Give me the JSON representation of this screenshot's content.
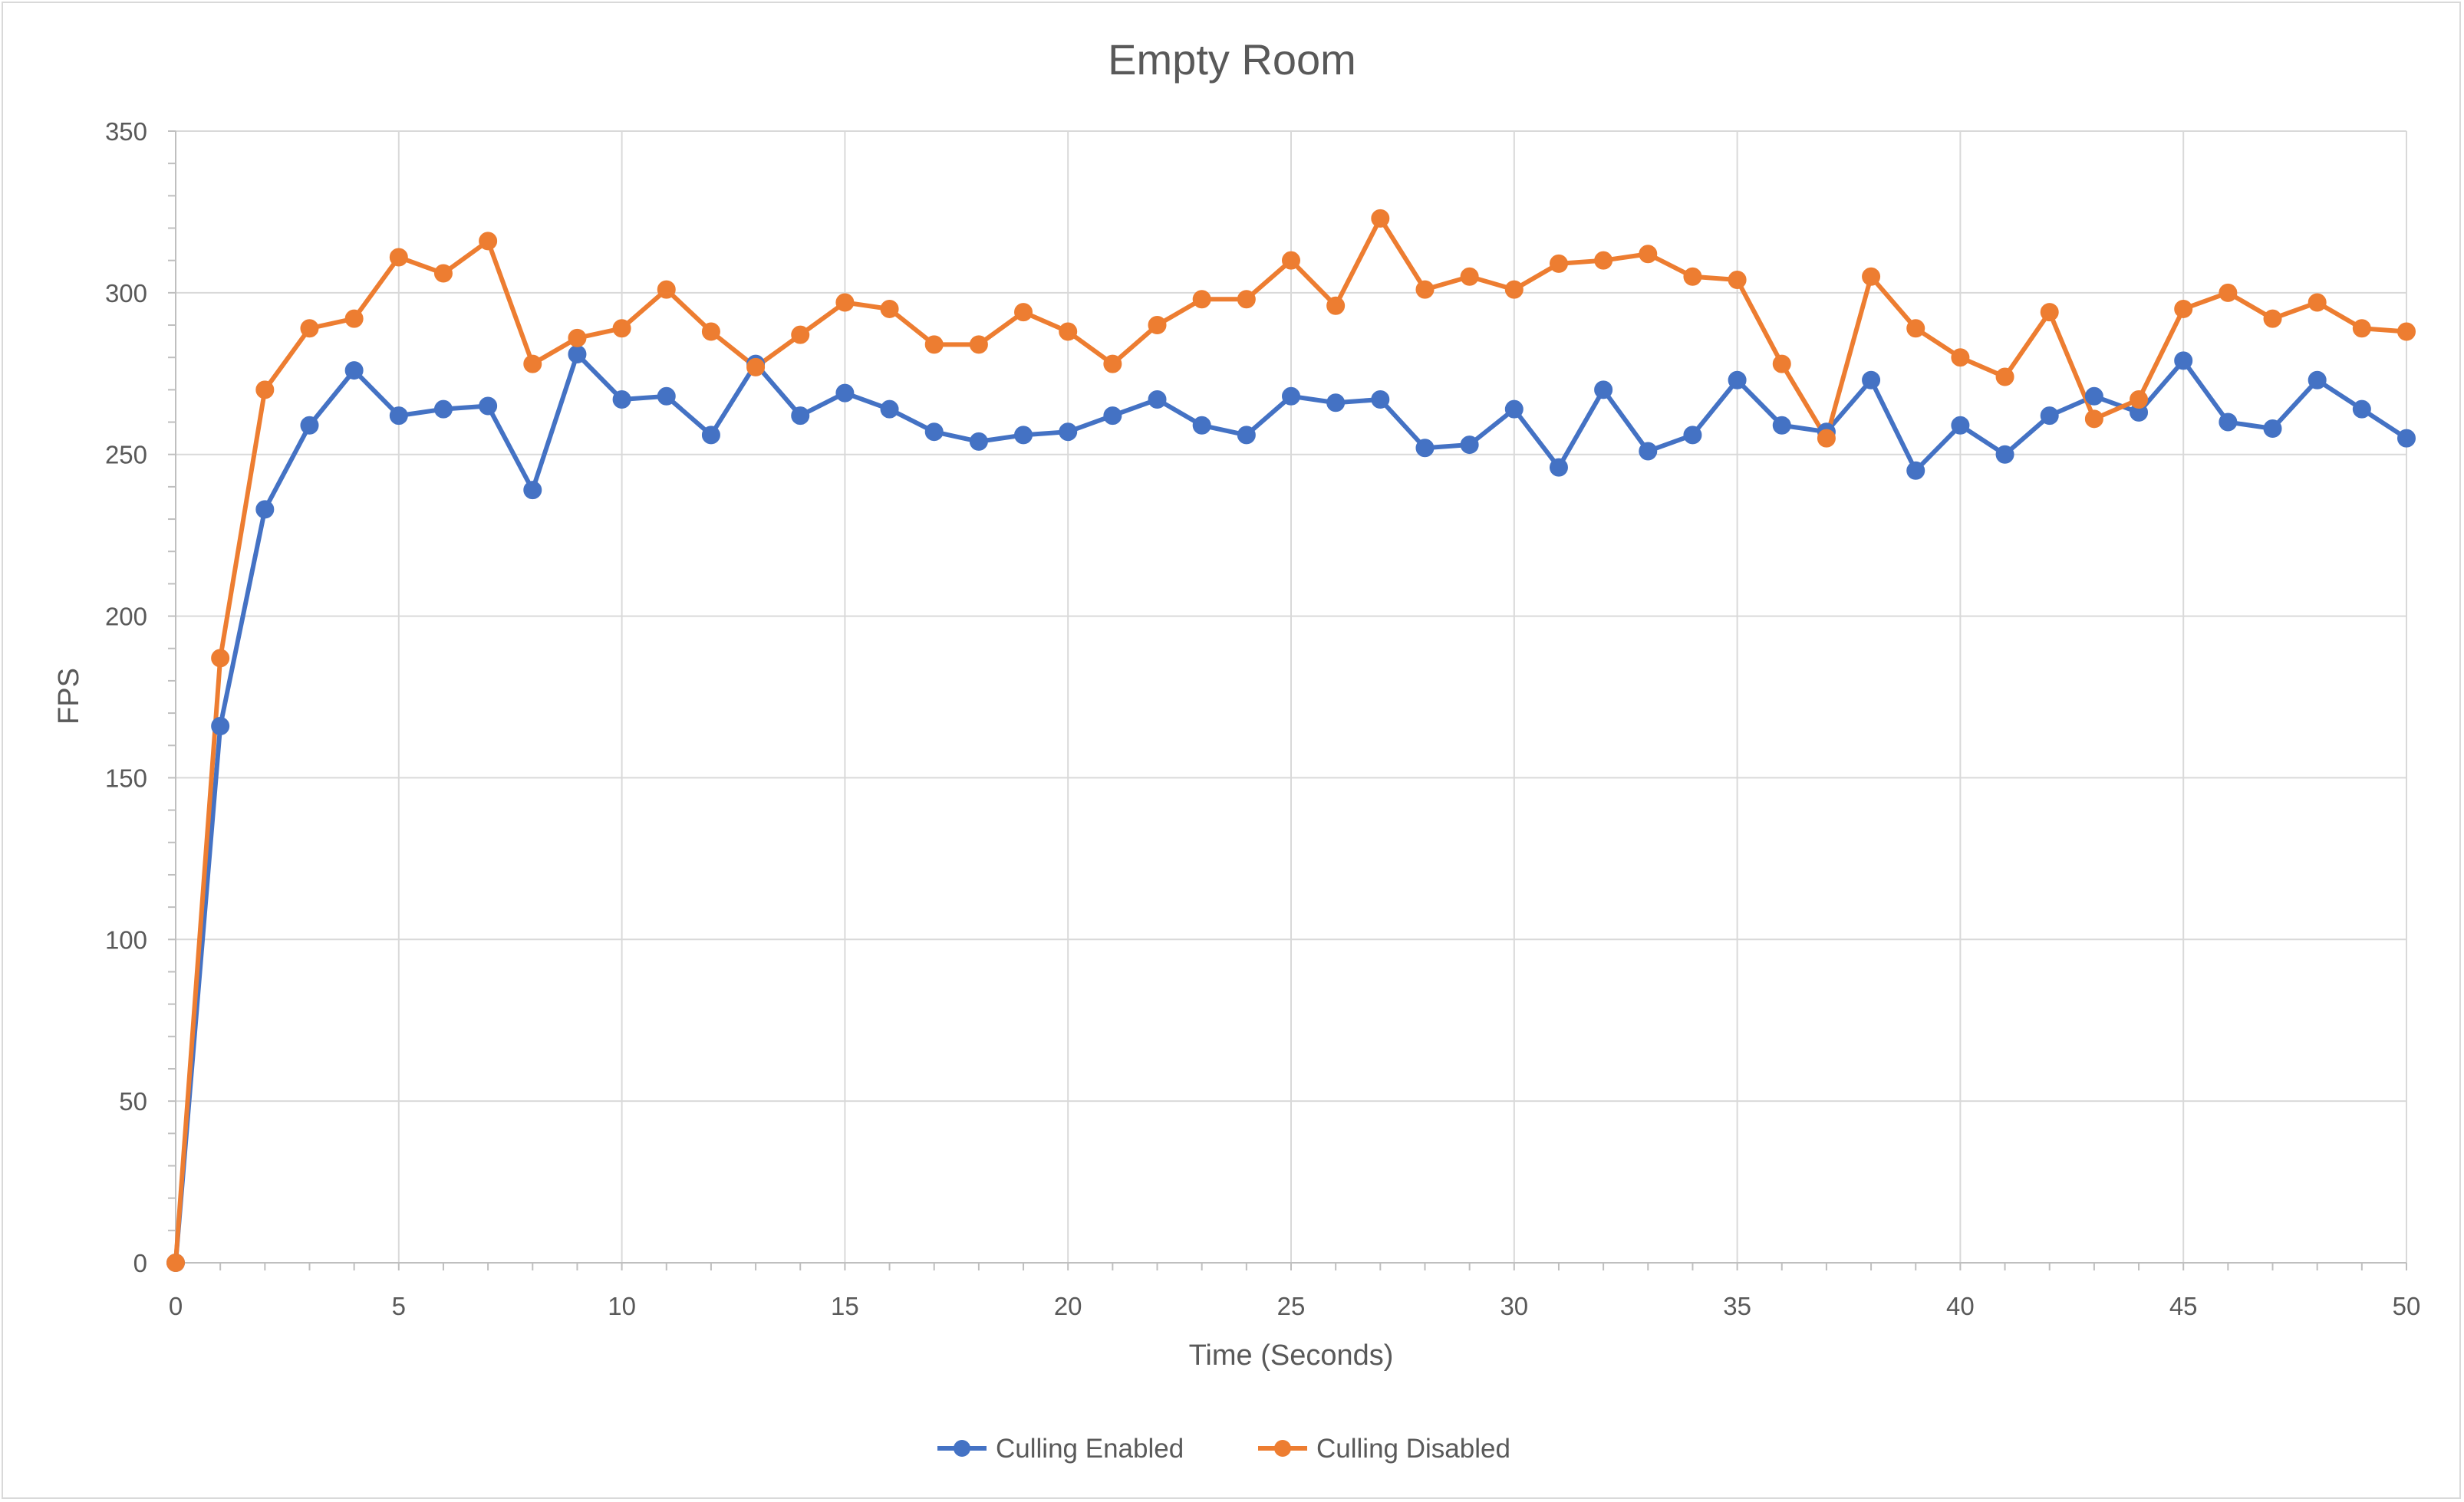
{
  "chart_data": {
    "type": "line",
    "title": "Empty Room",
    "xlabel": "Time (Seconds)",
    "ylabel": "FPS",
    "xlim": [
      0,
      50
    ],
    "ylim": [
      0,
      350
    ],
    "x_ticks": [
      0,
      5,
      10,
      15,
      20,
      25,
      30,
      35,
      40,
      45,
      50
    ],
    "y_ticks": [
      0,
      50,
      100,
      150,
      200,
      250,
      300,
      350
    ],
    "grid": true,
    "legend_position": "bottom",
    "x": [
      0,
      1,
      2,
      3,
      4,
      5,
      6,
      7,
      8,
      9,
      10,
      11,
      12,
      13,
      14,
      15,
      16,
      17,
      18,
      19,
      20,
      21,
      22,
      23,
      24,
      25,
      26,
      27,
      28,
      29,
      30,
      31,
      32,
      33,
      34,
      35,
      36,
      37,
      38,
      39,
      40,
      41,
      42,
      43,
      44,
      45,
      46,
      47,
      48,
      49,
      50
    ],
    "series": [
      {
        "name": "Culling Enabled",
        "color": "#4472c4",
        "values": [
          0,
          166,
          233,
          259,
          276,
          262,
          264,
          265,
          239,
          281,
          267,
          268,
          256,
          278,
          262,
          269,
          264,
          257,
          254,
          256,
          257,
          262,
          267,
          259,
          256,
          268,
          266,
          267,
          252,
          253,
          264,
          246,
          270,
          251,
          256,
          273,
          259,
          257,
          273,
          245,
          259,
          250,
          262,
          268,
          263,
          279,
          260,
          258,
          273,
          264,
          255
        ]
      },
      {
        "name": "Culling Disabled",
        "color": "#ed7d31",
        "values": [
          0,
          187,
          270,
          289,
          292,
          311,
          306,
          316,
          278,
          286,
          289,
          301,
          288,
          277,
          287,
          297,
          295,
          284,
          284,
          294,
          288,
          278,
          290,
          298,
          298,
          310,
          296,
          323,
          301,
          305,
          301,
          309,
          310,
          312,
          305,
          304,
          278,
          255,
          305,
          289,
          280,
          274,
          294,
          261,
          267,
          295,
          300,
          292,
          297,
          289,
          288
        ]
      }
    ]
  }
}
